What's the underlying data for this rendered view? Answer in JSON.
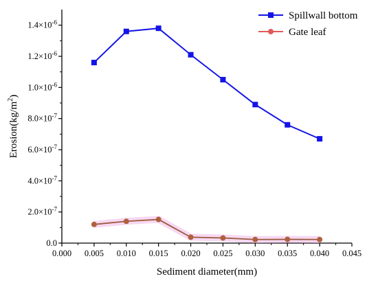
{
  "chart_data": {
    "type": "line",
    "xlabel": "Sediment diameter(mm)",
    "ylabel_main": "Erosion(kg/m",
    "ylabel_sup": "2",
    "ylabel_tail": ")",
    "xlim": [
      0.0,
      0.045
    ],
    "ylim": [
      0.0,
      1.5e-06
    ],
    "x_ticks": [
      {
        "value": 0.0,
        "label": "0.000"
      },
      {
        "value": 0.005,
        "label": "0.005"
      },
      {
        "value": 0.01,
        "label": "0.010"
      },
      {
        "value": 0.015,
        "label": "0.015"
      },
      {
        "value": 0.02,
        "label": "0.020"
      },
      {
        "value": 0.025,
        "label": "0.025"
      },
      {
        "value": 0.03,
        "label": "0.030"
      },
      {
        "value": 0.035,
        "label": "0.035"
      },
      {
        "value": 0.04,
        "label": "0.040"
      },
      {
        "value": 0.045,
        "label": "0.045"
      }
    ],
    "y_ticks": [
      {
        "value": 0.0,
        "mant": "0.0",
        "exp": ""
      },
      {
        "value": 2e-07,
        "mant": "2.0×10",
        "exp": "-7"
      },
      {
        "value": 4e-07,
        "mant": "4.0×10",
        "exp": "-7"
      },
      {
        "value": 6e-07,
        "mant": "6.0×10",
        "exp": "-7"
      },
      {
        "value": 8e-07,
        "mant": "8.0×10",
        "exp": "-7"
      },
      {
        "value": 1e-06,
        "mant": "1.0×10",
        "exp": "-6"
      },
      {
        "value": 1.2e-06,
        "mant": "1.2×10",
        "exp": "-6"
      },
      {
        "value": 1.4e-06,
        "mant": "1.4×10",
        "exp": "-6"
      }
    ],
    "x": [
      0.005,
      0.01,
      0.015,
      0.02,
      0.025,
      0.03,
      0.035,
      0.04
    ],
    "series": [
      {
        "name": "Spillwall bottom",
        "color": "#1414e6",
        "marker": "square",
        "values": [
          1.16e-06,
          1.36e-06,
          1.38e-06,
          1.21e-06,
          1.05e-06,
          8.9e-07,
          7.6e-07,
          6.7e-07
        ]
      },
      {
        "name": "Gate leaf",
        "color": "#9b5a3c",
        "marker_color": "#b0603f",
        "legend_color": "#e05a5a",
        "marker": "circle",
        "values": [
          1.2e-07,
          1.4e-07,
          1.52e-07,
          3.8e-08,
          3.3e-08,
          2.3e-08,
          2.4e-08,
          2.3e-08
        ]
      }
    ],
    "legend_position": "top-right",
    "grid": false
  }
}
